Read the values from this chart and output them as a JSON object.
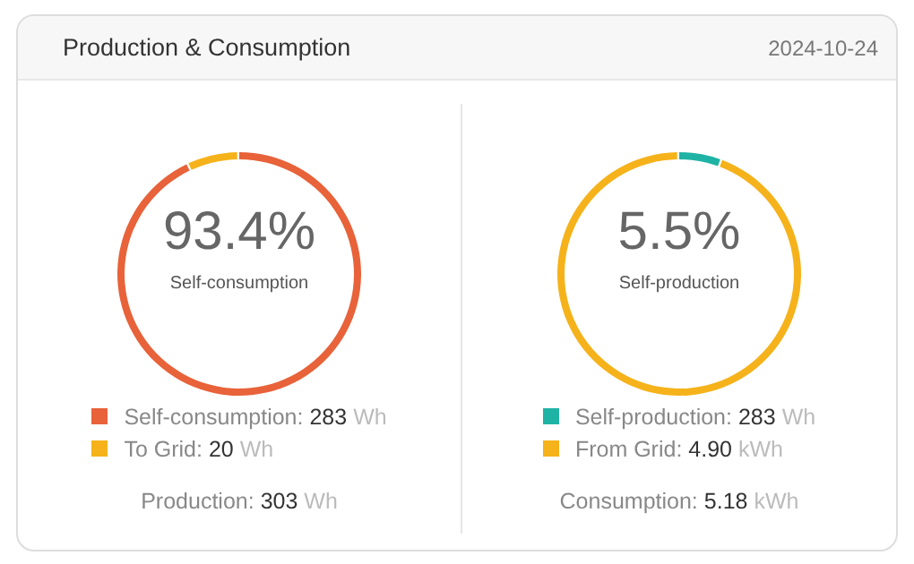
{
  "chart_data": [
    {
      "type": "other",
      "title": "Production & Consumption",
      "subtitle": "2024-10-24"
    },
    {
      "type": "donut",
      "categories": [
        "Self-consumption: 283 Wh",
        "To Grid: 20 Wh"
      ],
      "values": [
        93.4,
        6.6
      ],
      "colors": [
        "#e8623a",
        "#f5b21a"
      ],
      "legend": "bottom",
      "annotations": [
        "93.4%",
        "Self-consumption",
        "Production: 303 Wh"
      ]
    },
    {
      "type": "donut",
      "categories": [
        "Self-production: 283 Wh",
        "From Grid: 4.90 kWh"
      ],
      "values": [
        5.5,
        94.5
      ],
      "colors": [
        "#1fb3a5",
        "#f5b21a"
      ],
      "legend": "bottom",
      "annotations": [
        "5.5%",
        "Self-production",
        "Consumption: 5.18 kWh"
      ]
    }
  ]
}
